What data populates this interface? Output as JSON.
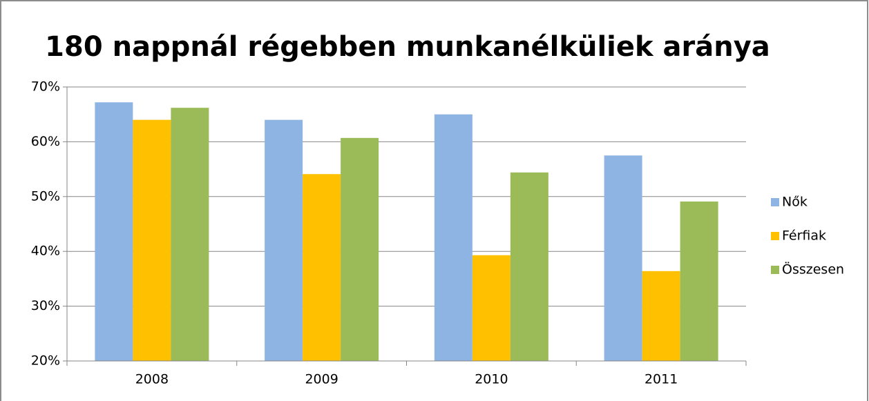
{
  "chart_data": {
    "type": "bar",
    "title": "180 nappnál régebben munkanélküliek aránya",
    "categories": [
      "2008",
      "2009",
      "2010",
      "2011"
    ],
    "series": [
      {
        "name": "Nők",
        "color": "#8eb4e3",
        "values": [
          67.2,
          64.0,
          65.0,
          57.5
        ]
      },
      {
        "name": "Férfiak",
        "color": "#ffc000",
        "values": [
          64.0,
          54.1,
          39.3,
          36.4
        ]
      },
      {
        "name": "Összesen",
        "color": "#9bbb59",
        "values": [
          66.2,
          60.7,
          54.4,
          49.1
        ]
      }
    ],
    "ylim": [
      20,
      70
    ],
    "yticks": [
      {
        "value": 20,
        "label": "20%"
      },
      {
        "value": 30,
        "label": "30%"
      },
      {
        "value": 40,
        "label": "40%"
      },
      {
        "value": 50,
        "label": "50%"
      },
      {
        "value": 60,
        "label": "60%"
      },
      {
        "value": 70,
        "label": "70%"
      }
    ],
    "grid": true,
    "legend": "right"
  }
}
